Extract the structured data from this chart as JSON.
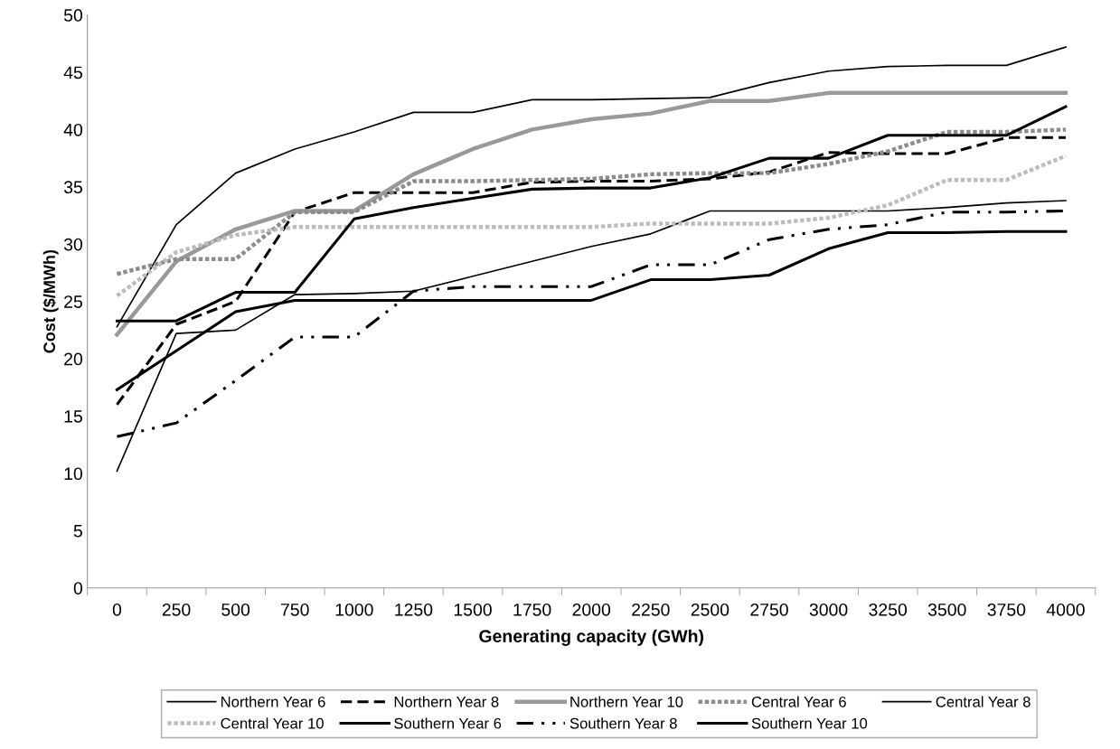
{
  "chart_data": {
    "type": "line",
    "xlabel": "Generating capacity (GWh)",
    "ylabel": "Cost ($/MWh)",
    "categories": [
      "0",
      "250",
      "500",
      "750",
      "1000",
      "1250",
      "1500",
      "1750",
      "2000",
      "2250",
      "2500",
      "2750",
      "3000",
      "3250",
      "3500",
      "3750",
      "4000"
    ],
    "ylim": [
      0,
      50
    ],
    "yticks": [
      0,
      5,
      10,
      15,
      20,
      25,
      30,
      35,
      40,
      45,
      50
    ],
    "grid": false,
    "legend": "bottom",
    "marker": "none",
    "series": [
      {
        "name": "Northern Year 6",
        "color": "#000000",
        "line_style": "solid",
        "values": [
          22.8,
          31.7,
          36.2,
          38.3,
          39.8,
          41.5,
          41.5,
          42.6,
          42.6,
          42.7,
          42.8,
          44.1,
          45.1,
          45.5,
          45.6,
          45.6,
          47.2
        ]
      },
      {
        "name": "Northern Year 8",
        "color": "#000000",
        "line_style": "dashed",
        "values": [
          16.0,
          23.0,
          25.0,
          32.8,
          34.5,
          34.5,
          34.5,
          35.4,
          35.5,
          35.5,
          35.7,
          36.3,
          38.0,
          37.9,
          37.9,
          39.3,
          39.3
        ]
      },
      {
        "name": "Northern Year 10",
        "color": "#999999",
        "line_style": "solid",
        "values": [
          22.1,
          28.5,
          31.3,
          32.9,
          32.9,
          36.1,
          38.3,
          40.0,
          40.9,
          41.4,
          42.5,
          42.5,
          43.2,
          43.2,
          43.2,
          43.2,
          43.2
        ]
      },
      {
        "name": "Central Year 6",
        "color": "#8c8c8c",
        "line_style": "dotted",
        "values": [
          27.4,
          28.7,
          28.7,
          32.8,
          32.8,
          35.5,
          35.5,
          35.6,
          35.7,
          36.1,
          36.2,
          36.2,
          37.0,
          38.1,
          39.8,
          39.8,
          40.0
        ]
      },
      {
        "name": "Central Year 8",
        "color": "#000000",
        "line_style": "solid",
        "values": [
          10.2,
          22.2,
          22.5,
          25.6,
          25.7,
          25.9,
          27.2,
          28.5,
          29.8,
          30.9,
          32.9,
          32.9,
          32.9,
          32.9,
          33.2,
          33.6,
          33.8
        ]
      },
      {
        "name": "Central Year 10",
        "color": "#bdbdbd",
        "line_style": "dotted",
        "values": [
          25.5,
          29.3,
          30.8,
          31.5,
          31.5,
          31.5,
          31.5,
          31.5,
          31.5,
          31.8,
          31.8,
          31.8,
          32.3,
          33.4,
          35.6,
          35.6,
          37.7
        ]
      },
      {
        "name": "Southern Year 6",
        "color": "#000000",
        "line_style": "solid",
        "values": [
          23.3,
          23.3,
          25.8,
          25.8,
          32.2,
          33.2,
          34.0,
          34.8,
          34.9,
          34.9,
          35.8,
          37.5,
          37.5,
          39.5,
          39.5,
          39.5,
          42.0
        ]
      },
      {
        "name": "Southern Year 8",
        "color": "#000000",
        "line_style": "dashdot",
        "values": [
          13.2,
          14.4,
          18.1,
          21.9,
          21.9,
          25.9,
          26.3,
          26.3,
          26.3,
          28.2,
          28.2,
          30.4,
          31.3,
          31.7,
          32.8,
          32.8,
          32.9
        ]
      },
      {
        "name": "Southern Year 10",
        "color": "#000000",
        "line_style": "solid",
        "values": [
          17.3,
          20.7,
          24.1,
          25.1,
          25.1,
          25.1,
          25.1,
          25.1,
          25.1,
          26.9,
          26.9,
          27.3,
          29.6,
          31.0,
          31.0,
          31.1,
          31.1
        ]
      }
    ]
  }
}
